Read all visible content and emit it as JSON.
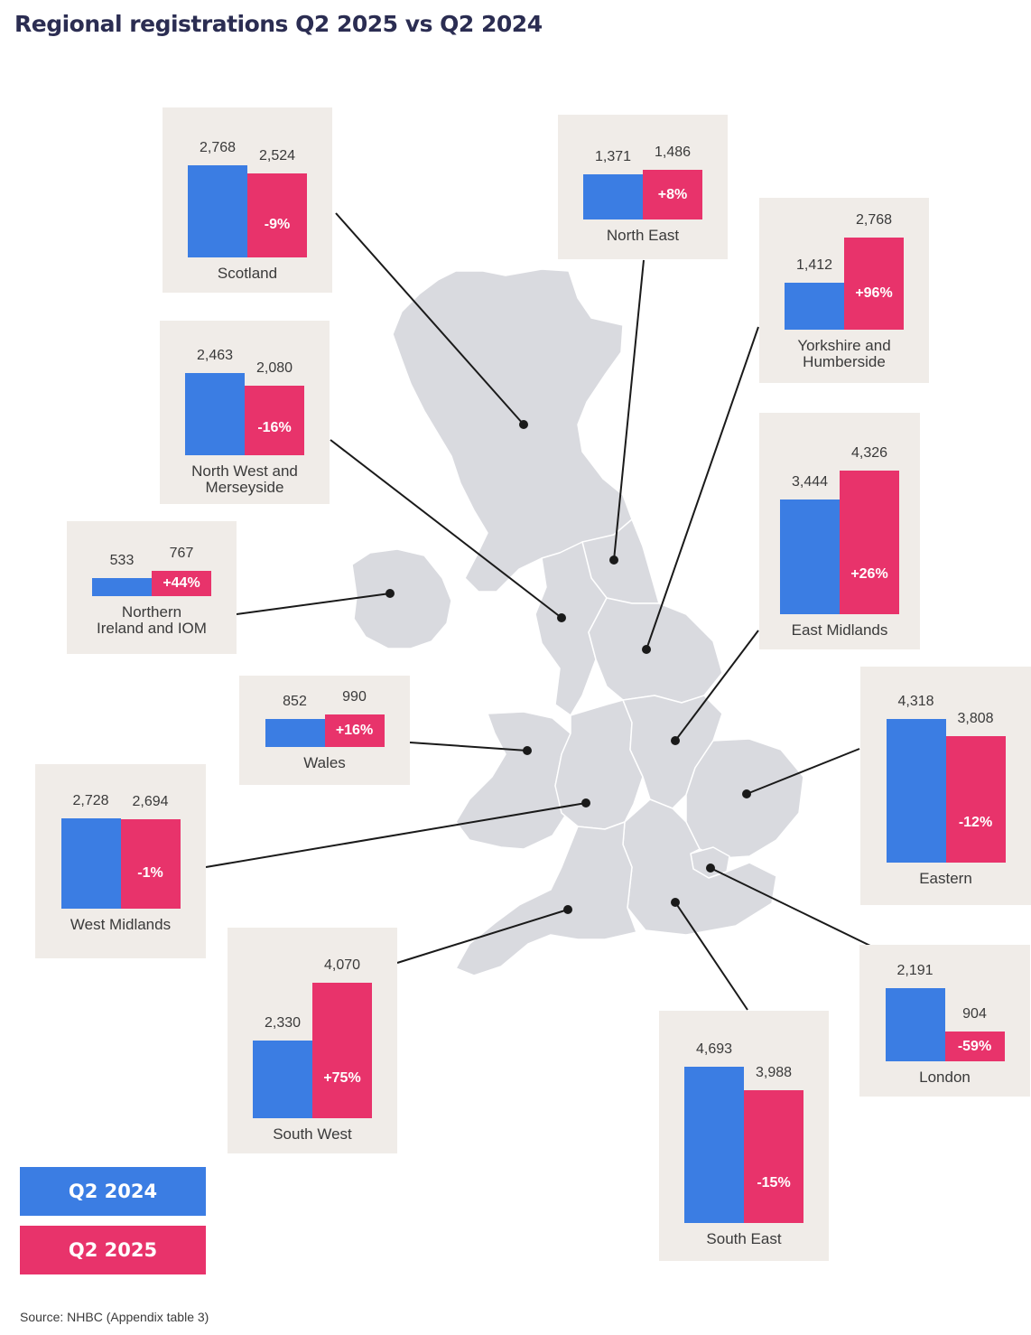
{
  "title": "Regional registrations Q2 2025 vs Q2 2024",
  "source": "Source: NHBC (Appendix table 3)",
  "colors": {
    "q2_2024": "#3b7de3",
    "q2_2025": "#e8336b",
    "panel": "#f0ece8",
    "map": "#d9dadf"
  },
  "legend": [
    {
      "label": "Q2 2024",
      "color": "#3b7de3"
    },
    {
      "label": "Q2 2025",
      "color": "#e8336b"
    }
  ],
  "chart_data": {
    "type": "bar",
    "series_names": [
      "Q2 2024",
      "Q2 2025"
    ],
    "regions": [
      {
        "name": "Scotland",
        "q2_2024": 2768,
        "q2_2025": 2524,
        "q2_2024_label": "2,768",
        "q2_2025_label": "2,524",
        "change": "-9%"
      },
      {
        "name": "North East",
        "q2_2024": 1371,
        "q2_2025": 1486,
        "q2_2024_label": "1,371",
        "q2_2025_label": "1,486",
        "change": "+8%"
      },
      {
        "name": "Yorkshire and Humberside",
        "q2_2024": 1412,
        "q2_2025": 2768,
        "q2_2024_label": "1,412",
        "q2_2025_label": "2,768",
        "change": "+96%"
      },
      {
        "name": "North West and Merseyside",
        "q2_2024": 2463,
        "q2_2025": 2080,
        "q2_2024_label": "2,463",
        "q2_2025_label": "2,080",
        "change": "-16%"
      },
      {
        "name": "East Midlands",
        "q2_2024": 3444,
        "q2_2025": 4326,
        "q2_2024_label": "3,444",
        "q2_2025_label": "4,326",
        "change": "+26%"
      },
      {
        "name": "Northern Ireland and IOM",
        "q2_2024": 533,
        "q2_2025": 767,
        "q2_2024_label": "533",
        "q2_2025_label": "767",
        "change": "+44%"
      },
      {
        "name": "Wales",
        "q2_2024": 852,
        "q2_2025": 990,
        "q2_2024_label": "852",
        "q2_2025_label": "990",
        "change": "+16%"
      },
      {
        "name": "Eastern",
        "q2_2024": 4318,
        "q2_2025": 3808,
        "q2_2024_label": "4,318",
        "q2_2025_label": "3,808",
        "change": "-12%"
      },
      {
        "name": "West Midlands",
        "q2_2024": 2728,
        "q2_2025": 2694,
        "q2_2024_label": "2,728",
        "q2_2025_label": "2,694",
        "change": "-1%"
      },
      {
        "name": "London",
        "q2_2024": 2191,
        "q2_2025": 904,
        "q2_2024_label": "2,191",
        "q2_2025_label": "904",
        "change": "-59%"
      },
      {
        "name": "South West",
        "q2_2024": 2330,
        "q2_2025": 4070,
        "q2_2024_label": "2,330",
        "q2_2025_label": "4,070",
        "change": "+75%"
      },
      {
        "name": "South East",
        "q2_2024": 4693,
        "q2_2025": 3988,
        "q2_2024_label": "4,693",
        "q2_2025_label": "3,988",
        "change": "-15%"
      }
    ]
  }
}
